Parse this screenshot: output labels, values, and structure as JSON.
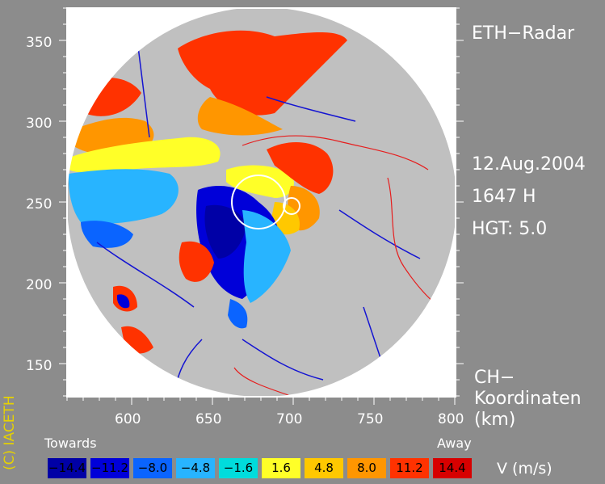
{
  "title": "ETH−Radar",
  "date": "12.Aug.2004",
  "time": "1647 H",
  "height": "HGT: 5.0",
  "coords": [
    "CH−",
    "Koordinaten",
    "(km)"
  ],
  "copyright": "(C) IACETH",
  "x_ticks": [
    "600",
    "650",
    "700",
    "750",
    "800"
  ],
  "y_ticks": [
    "350",
    "300",
    "250",
    "200",
    "150"
  ],
  "legend": {
    "towards": "Towards",
    "away": "Away",
    "unit": "V  (m/s)",
    "values": [
      "−14.4",
      "−11.2",
      "−8.0",
      "−4.8",
      "−1.6",
      "1.6",
      "4.8",
      "8.0",
      "11.2",
      "14.4"
    ],
    "colors": [
      "#0000a6",
      "#0000d9",
      "#0a64ff",
      "#28b4ff",
      "#00dcdc",
      "#ffff28",
      "#ffc800",
      "#ff9600",
      "#ff3200",
      "#d70000"
    ]
  }
}
